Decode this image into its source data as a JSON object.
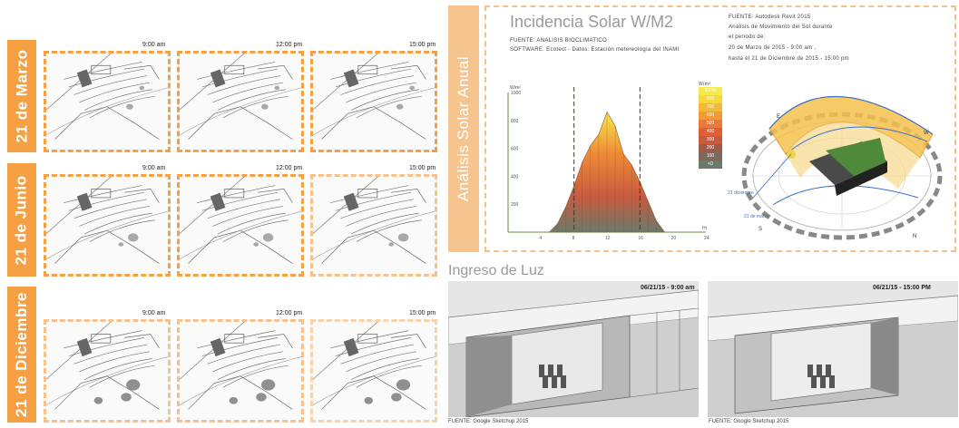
{
  "rows": [
    {
      "label": "21 de Marzo",
      "times": [
        "9:00 am",
        "12:00 pm",
        "15:00 pm"
      ]
    },
    {
      "label": "21 de Junio",
      "times": [
        "9:00 am",
        "12:00 pm",
        "15:00 pm"
      ]
    },
    {
      "label": "21 de Diciembre",
      "times": [
        "9:00 am",
        "12:00 pm",
        "15:00 pm"
      ]
    }
  ],
  "analysis": {
    "side_label": "Análisis Solar Anual",
    "title": "Incidencia Solar W/M2",
    "subtitle1": "FUENTE: ANALISIS BIOCLIMATICO",
    "subtitle2": "SOFTWARE: Ecotect - Datos: Estación metereología del INAMI",
    "notes": [
      "FUENTE: Autodesk Revit 2015",
      "Análisis de Movimiento del Sol durante",
      "el periodo de:",
      "20 de Marzo de 2015 - 9:00 am ,",
      "hasta el 21 de Diciembre de 2015 - 15:00 pm"
    ],
    "legend_title": "W/m²",
    "legend": [
      {
        "label": "900W",
        "color": "#f6e94a"
      },
      {
        "label": "800",
        "color": "#f4d83c"
      },
      {
        "label": "700",
        "color": "#f3b93a"
      },
      {
        "label": "600",
        "color": "#f19a38"
      },
      {
        "label": "500",
        "color": "#ec7a36"
      },
      {
        "label": "400",
        "color": "#e05f36"
      },
      {
        "label": "300",
        "color": "#c85a3e"
      },
      {
        "label": "200",
        "color": "#a05a48"
      },
      {
        "label": "100",
        "color": "#7c6a5e"
      },
      {
        "label": "<0",
        "color": "#6b7a6b"
      }
    ],
    "y_label": "W/m²",
    "y_ticks": [
      "1000",
      "800",
      "600",
      "400",
      "200"
    ],
    "x_label": "Hr",
    "x_ticks": [
      "4",
      "8",
      "12",
      "16",
      "20",
      "24"
    ],
    "sundome_labels": {
      "e": "E",
      "w": "W",
      "n": "N",
      "s": "S",
      "dic": "21 diciembre",
      "mar": "21 de marzo"
    }
  },
  "chart_data": {
    "type": "area",
    "title": "Incidencia Solar W/M2",
    "xlabel": "Hr",
    "ylabel": "W/m²",
    "xlim": [
      0,
      24
    ],
    "ylim": [
      0,
      1000
    ],
    "x": [
      5,
      6,
      7,
      8,
      9,
      10,
      11,
      12,
      13,
      14,
      15,
      16,
      17,
      18,
      19
    ],
    "series": [
      {
        "values": [
          0,
          60,
          180,
          330,
          500,
          620,
          700,
          860,
          760,
          560,
          480,
          360,
          220,
          80,
          0
        ]
      }
    ],
    "markers_x": [
      8,
      16
    ]
  },
  "light": {
    "title": "Ingreso de Luz",
    "images": [
      {
        "stamp": "06/21/15 - 9:00 am",
        "caption": "FUENTE: Google Sketchup 2015"
      },
      {
        "stamp": "06/21/15 - 15:00 PM",
        "caption": "FUENTE: Google Sketchup 2015"
      }
    ]
  }
}
